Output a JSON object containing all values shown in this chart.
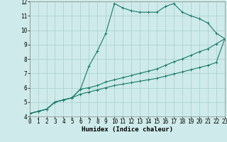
{
  "xlabel": "Humidex (Indice chaleur)",
  "bg_color": "#ceeaea",
  "line_color": "#1a7a6a",
  "grid_color": "#aacece",
  "xlim": [
    0,
    23
  ],
  "ylim": [
    4,
    12
  ],
  "xticks": [
    0,
    1,
    2,
    3,
    4,
    5,
    6,
    7,
    8,
    9,
    10,
    11,
    12,
    13,
    14,
    15,
    16,
    17,
    18,
    19,
    20,
    21,
    22,
    23
  ],
  "yticks": [
    4,
    5,
    6,
    7,
    8,
    9,
    10,
    11,
    12
  ],
  "line1_x": [
    0,
    1,
    2,
    3,
    4,
    5,
    6,
    7,
    8,
    9,
    10,
    11,
    12,
    13,
    14,
    15,
    16,
    17,
    18,
    19,
    20,
    21,
    22,
    23
  ],
  "line1_y": [
    4.2,
    4.35,
    4.5,
    5.0,
    5.15,
    5.3,
    5.9,
    7.5,
    8.55,
    9.8,
    11.85,
    11.55,
    11.35,
    11.25,
    11.25,
    11.25,
    11.65,
    11.85,
    11.25,
    11.0,
    10.8,
    10.5,
    9.8,
    9.4
  ],
  "line2_x": [
    0,
    1,
    2,
    3,
    4,
    5,
    6,
    7,
    8,
    9,
    10,
    11,
    12,
    13,
    14,
    15,
    16,
    17,
    18,
    19,
    20,
    21,
    22,
    23
  ],
  "line2_y": [
    4.2,
    4.35,
    4.5,
    5.0,
    5.15,
    5.3,
    5.9,
    6.0,
    6.15,
    6.4,
    6.55,
    6.7,
    6.85,
    7.0,
    7.15,
    7.3,
    7.55,
    7.8,
    8.0,
    8.25,
    8.5,
    8.7,
    9.05,
    9.4
  ],
  "line3_x": [
    0,
    1,
    2,
    3,
    4,
    5,
    6,
    7,
    8,
    9,
    10,
    11,
    12,
    13,
    14,
    15,
    16,
    17,
    18,
    19,
    20,
    21,
    22,
    23
  ],
  "line3_y": [
    4.2,
    4.35,
    4.5,
    5.0,
    5.15,
    5.3,
    5.55,
    5.7,
    5.85,
    6.0,
    6.15,
    6.25,
    6.35,
    6.45,
    6.55,
    6.65,
    6.8,
    6.95,
    7.1,
    7.25,
    7.4,
    7.55,
    7.75,
    9.4
  ],
  "markersize": 3,
  "linewidth": 0.8,
  "tick_fontsize": 5.5,
  "label_fontsize": 6.5
}
